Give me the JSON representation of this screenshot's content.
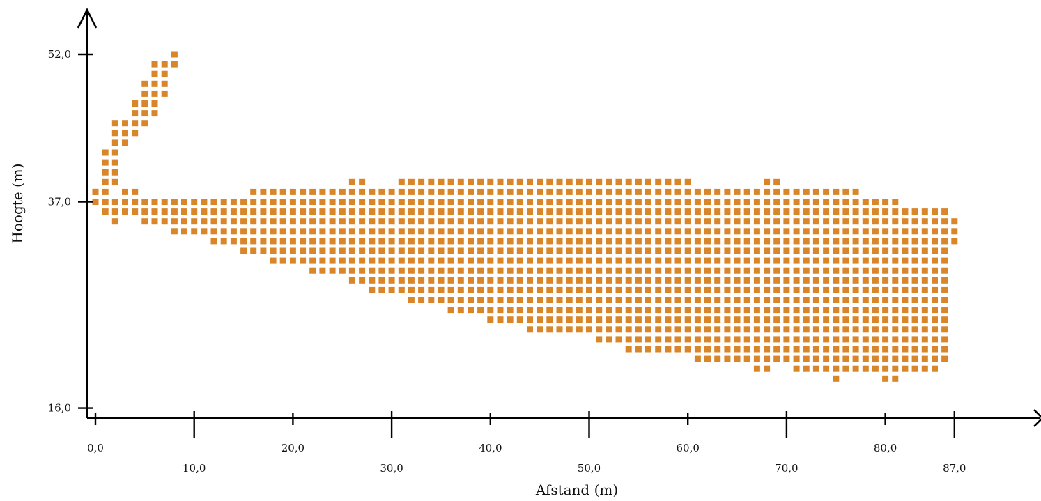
{
  "chart_data": {
    "type": "heatmap",
    "title": "",
    "xlabel": "Afstand (m)",
    "ylabel": "Hoogte (m)",
    "xlim": [
      -1,
      96
    ],
    "ylim": [
      15,
      58
    ],
    "x_ticks": [
      {
        "value": 0,
        "label": "0,0",
        "row": 1
      },
      {
        "value": 10,
        "label": "10,0",
        "row": 2
      },
      {
        "value": 20,
        "label": "20,0",
        "row": 1
      },
      {
        "value": 30,
        "label": "30,0",
        "row": 2
      },
      {
        "value": 40,
        "label": "40,0",
        "row": 1
      },
      {
        "value": 50,
        "label": "50,0",
        "row": 2
      },
      {
        "value": 60,
        "label": "60,0",
        "row": 1
      },
      {
        "value": 70,
        "label": "70,0",
        "row": 2
      },
      {
        "value": 80,
        "label": "80,0",
        "row": 1
      },
      {
        "value": 87,
        "label": "87,0",
        "row": 2
      }
    ],
    "y_ticks": [
      {
        "value": 16,
        "label": "16,0"
      },
      {
        "value": 37,
        "label": "37,0"
      },
      {
        "value": 52,
        "label": "52,0"
      }
    ],
    "cell_color": "#d9862a",
    "cell_size": {
      "x": 1,
      "y": 1
    },
    "grid": false,
    "top_arm": {
      "x": [
        0,
        1,
        2,
        3,
        4,
        5,
        6,
        7,
        8
      ],
      "top": [
        38,
        42,
        45,
        45,
        47,
        49,
        51,
        51,
        52
      ],
      "bottom": [
        38,
        39,
        39,
        43,
        44,
        45,
        46,
        48,
        51
      ]
    },
    "body": {
      "x": [
        0,
        1,
        2,
        3,
        4,
        5,
        6,
        7,
        8,
        9,
        10,
        11,
        12,
        13,
        14,
        15,
        16,
        17,
        18,
        19,
        20,
        21,
        22,
        23,
        24,
        25,
        26,
        27,
        28,
        29,
        30,
        31,
        32,
        33,
        34,
        35,
        36,
        37,
        38,
        39,
        40,
        41,
        42,
        43,
        44,
        45,
        46,
        47,
        48,
        49,
        50,
        51,
        52,
        53,
        54,
        55,
        56,
        57,
        58,
        59,
        60,
        61,
        62,
        63,
        64,
        65,
        66,
        67,
        68,
        69,
        70,
        71,
        72,
        73,
        74,
        75,
        76,
        77,
        78,
        79,
        80,
        81,
        82,
        83,
        84,
        85,
        86,
        87
      ],
      "top": [
        38,
        38,
        37,
        38,
        38,
        37,
        37,
        37,
        37,
        37,
        37,
        37,
        37,
        37,
        37,
        37,
        38,
        38,
        38,
        38,
        38,
        38,
        38,
        38,
        38,
        38,
        39,
        39,
        38,
        38,
        38,
        39,
        39,
        39,
        39,
        39,
        39,
        39,
        39,
        39,
        39,
        39,
        39,
        39,
        39,
        39,
        39,
        39,
        39,
        39,
        39,
        39,
        39,
        39,
        39,
        39,
        39,
        39,
        39,
        39,
        39,
        38,
        38,
        38,
        38,
        38,
        38,
        38,
        39,
        39,
        38,
        38,
        38,
        38,
        38,
        38,
        38,
        38,
        37,
        37,
        37,
        37,
        36,
        36,
        36,
        36,
        36,
        35
      ],
      "bottom": [
        37,
        36,
        35,
        36,
        36,
        35,
        35,
        35,
        34,
        34,
        34,
        34,
        33,
        33,
        33,
        32,
        32,
        32,
        31,
        31,
        31,
        31,
        30,
        30,
        30,
        30,
        29,
        29,
        28,
        28,
        28,
        28,
        27,
        27,
        27,
        27,
        26,
        26,
        26,
        26,
        25,
        25,
        25,
        25,
        24,
        24,
        24,
        24,
        24,
        24,
        24,
        23,
        23,
        23,
        22,
        22,
        22,
        22,
        22,
        22,
        22,
        21,
        21,
        21,
        21,
        21,
        21,
        20,
        20,
        21,
        21,
        20,
        20,
        20,
        20,
        19,
        20,
        20,
        20,
        20,
        19,
        19,
        20,
        20,
        20,
        20,
        21,
        33
      ]
    }
  }
}
